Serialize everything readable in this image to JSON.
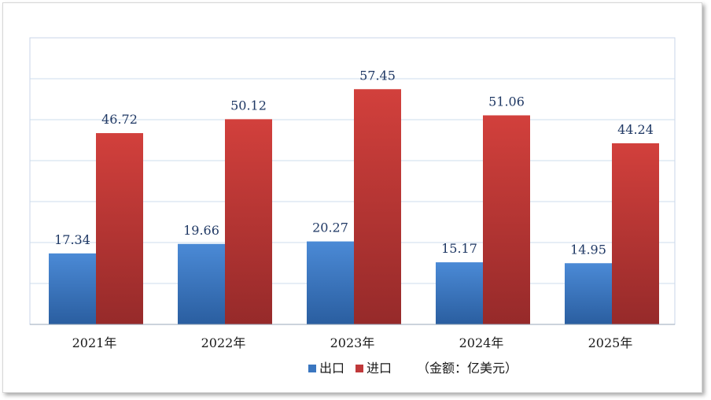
{
  "chart_data": {
    "type": "bar",
    "categories": [
      "2021年",
      "2022年",
      "2023年",
      "2024年",
      "2025年"
    ],
    "series": [
      {
        "name": "出口",
        "values": [
          17.34,
          19.66,
          20.27,
          15.17,
          14.95
        ],
        "color": "#3a76c0"
      },
      {
        "name": "进口",
        "values": [
          46.72,
          50.12,
          57.45,
          51.06,
          44.24
        ],
        "color": "#c0393a"
      }
    ],
    "value_labels": {
      "export": [
        "17.34",
        "19.66",
        "20.27",
        "15.17",
        "14.95"
      ],
      "import": [
        "46.72",
        "50.12",
        "57.45",
        "51.06",
        "44.24"
      ]
    },
    "unit_note": "（金额：亿美元）",
    "ylim": [
      0,
      70
    ],
    "grid": true,
    "legend_position": "bottom"
  }
}
